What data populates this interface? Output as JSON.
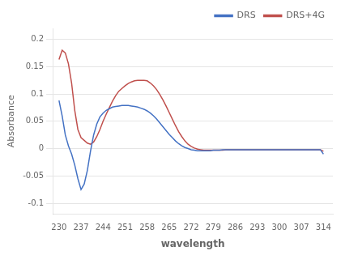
{
  "chart_data": {
    "type": "line",
    "xlabel": "wavelength",
    "ylabel": "Absorbance",
    "x": [
      230,
      231,
      232,
      233,
      234,
      235,
      236,
      237,
      238,
      239,
      240,
      241,
      242,
      243,
      244,
      245,
      246,
      247,
      248,
      249,
      250,
      251,
      252,
      253,
      254,
      255,
      256,
      257,
      258,
      259,
      260,
      261,
      262,
      263,
      264,
      265,
      266,
      267,
      268,
      269,
      270,
      271,
      272,
      273,
      274,
      275,
      276,
      277,
      278,
      279,
      280,
      281,
      282,
      283,
      284,
      285,
      286,
      287,
      288,
      289,
      290,
      291,
      292,
      293,
      294,
      295,
      296,
      297,
      298,
      299,
      300,
      301,
      302,
      303,
      304,
      305,
      306,
      307,
      308,
      309,
      310,
      311,
      312,
      313,
      314
    ],
    "series": [
      {
        "name": "DRS",
        "color": "#4472C4",
        "values": [
          0.088,
          0.06,
          0.025,
          0.005,
          -0.01,
          -0.03,
          -0.055,
          -0.075,
          -0.065,
          -0.04,
          -0.005,
          0.025,
          0.045,
          0.058,
          0.065,
          0.07,
          0.073,
          0.076,
          0.077,
          0.078,
          0.079,
          0.079,
          0.079,
          0.078,
          0.077,
          0.076,
          0.074,
          0.072,
          0.069,
          0.065,
          0.06,
          0.054,
          0.047,
          0.04,
          0.033,
          0.026,
          0.02,
          0.014,
          0.009,
          0.005,
          0.002,
          0.0,
          -0.002,
          -0.003,
          -0.004,
          -0.004,
          -0.004,
          -0.004,
          -0.004,
          -0.003,
          -0.003,
          -0.003,
          -0.002,
          -0.002,
          -0.002,
          -0.002,
          -0.002,
          -0.002,
          -0.002,
          -0.002,
          -0.002,
          -0.002,
          -0.002,
          -0.002,
          -0.002,
          -0.002,
          -0.002,
          -0.002,
          -0.002,
          -0.002,
          -0.002,
          -0.002,
          -0.002,
          -0.002,
          -0.002,
          -0.002,
          -0.002,
          -0.002,
          -0.002,
          -0.002,
          -0.002,
          -0.002,
          -0.002,
          -0.002,
          -0.01
        ]
      },
      {
        "name": "DRS+4G",
        "color": "#C0504D",
        "values": [
          0.163,
          0.18,
          0.175,
          0.155,
          0.12,
          0.07,
          0.035,
          0.02,
          0.015,
          0.01,
          0.008,
          0.012,
          0.022,
          0.035,
          0.05,
          0.063,
          0.075,
          0.087,
          0.097,
          0.105,
          0.11,
          0.115,
          0.119,
          0.122,
          0.124,
          0.125,
          0.125,
          0.125,
          0.124,
          0.12,
          0.115,
          0.108,
          0.099,
          0.089,
          0.078,
          0.066,
          0.054,
          0.042,
          0.031,
          0.022,
          0.014,
          0.008,
          0.004,
          0.001,
          -0.001,
          -0.002,
          -0.003,
          -0.003,
          -0.003,
          -0.003,
          -0.003,
          -0.003,
          -0.003,
          -0.002,
          -0.002,
          -0.002,
          -0.002,
          -0.002,
          -0.002,
          -0.002,
          -0.002,
          -0.002,
          -0.002,
          -0.002,
          -0.002,
          -0.002,
          -0.002,
          -0.002,
          -0.002,
          -0.002,
          -0.002,
          -0.002,
          -0.002,
          -0.002,
          -0.002,
          -0.002,
          -0.002,
          -0.002,
          -0.002,
          -0.002,
          -0.002,
          -0.002,
          -0.002,
          -0.002,
          -0.005
        ]
      }
    ],
    "xlim": [
      228,
      317
    ],
    "xticks": [
      230,
      237,
      244,
      251,
      258,
      265,
      272,
      279,
      286,
      293,
      300,
      307,
      314
    ],
    "ylim": [
      -0.12,
      0.22
    ],
    "yticks": [
      -0.1,
      -0.05,
      0,
      0.05,
      0.1,
      0.15,
      0.2
    ],
    "grid": "y",
    "legend": "upper right"
  }
}
